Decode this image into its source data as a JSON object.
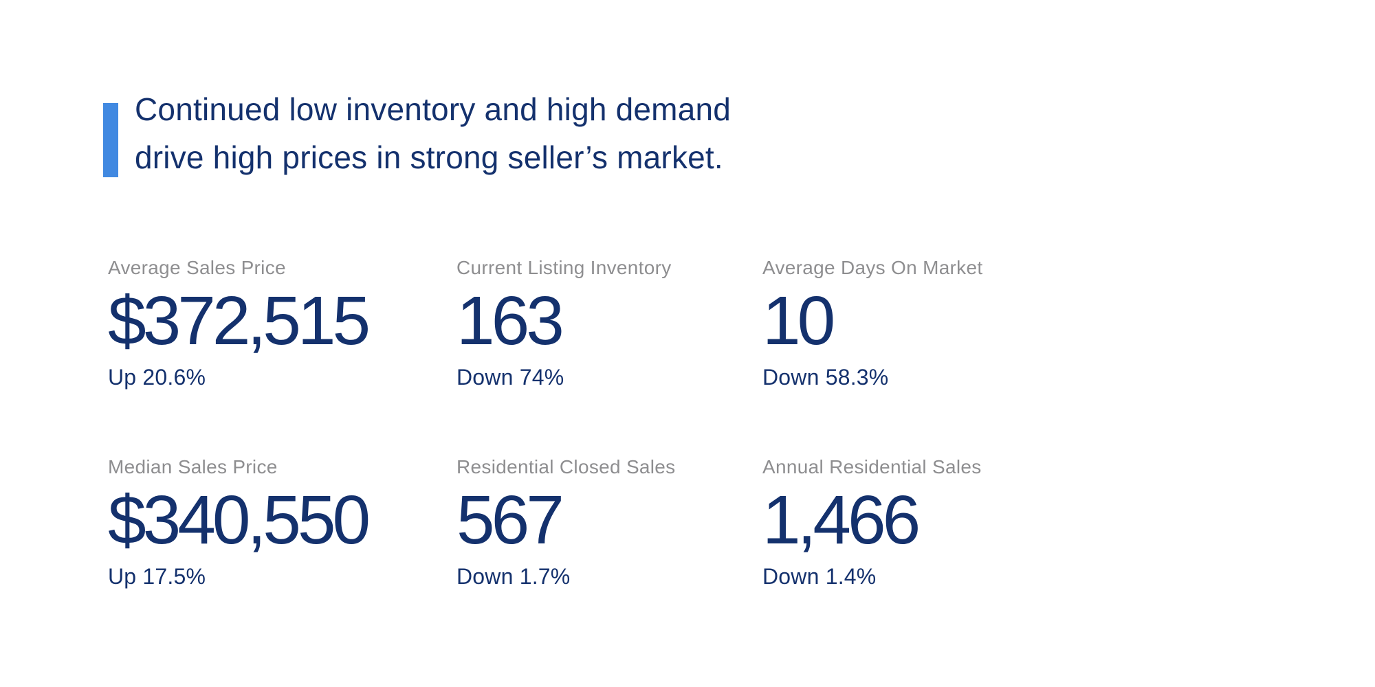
{
  "headline": {
    "line1": "Continued low inventory and high demand",
    "line2": "drive high prices in strong seller’s market."
  },
  "stats": [
    {
      "label": "Average Sales Price",
      "value": "$372,515",
      "change": "Up 20.6%"
    },
    {
      "label": "Current Listing Inventory",
      "value": "163",
      "change": "Down 74%"
    },
    {
      "label": "Average Days On Market",
      "value": "10",
      "change": "Down 58.3%"
    },
    {
      "label": "Median Sales Price",
      "value": "$340,550",
      "change": "Up 17.5%"
    },
    {
      "label": "Residential Closed Sales",
      "value": "567",
      "change": "Down 1.7%"
    },
    {
      "label": "Annual Residential Sales",
      "value": "1,466",
      "change": "Down 1.4%"
    }
  ],
  "colors": {
    "navy": "#14316d",
    "label_gray": "#8e8e90",
    "accent_blue": "#4189e1",
    "page_bg": "#ffffff"
  }
}
